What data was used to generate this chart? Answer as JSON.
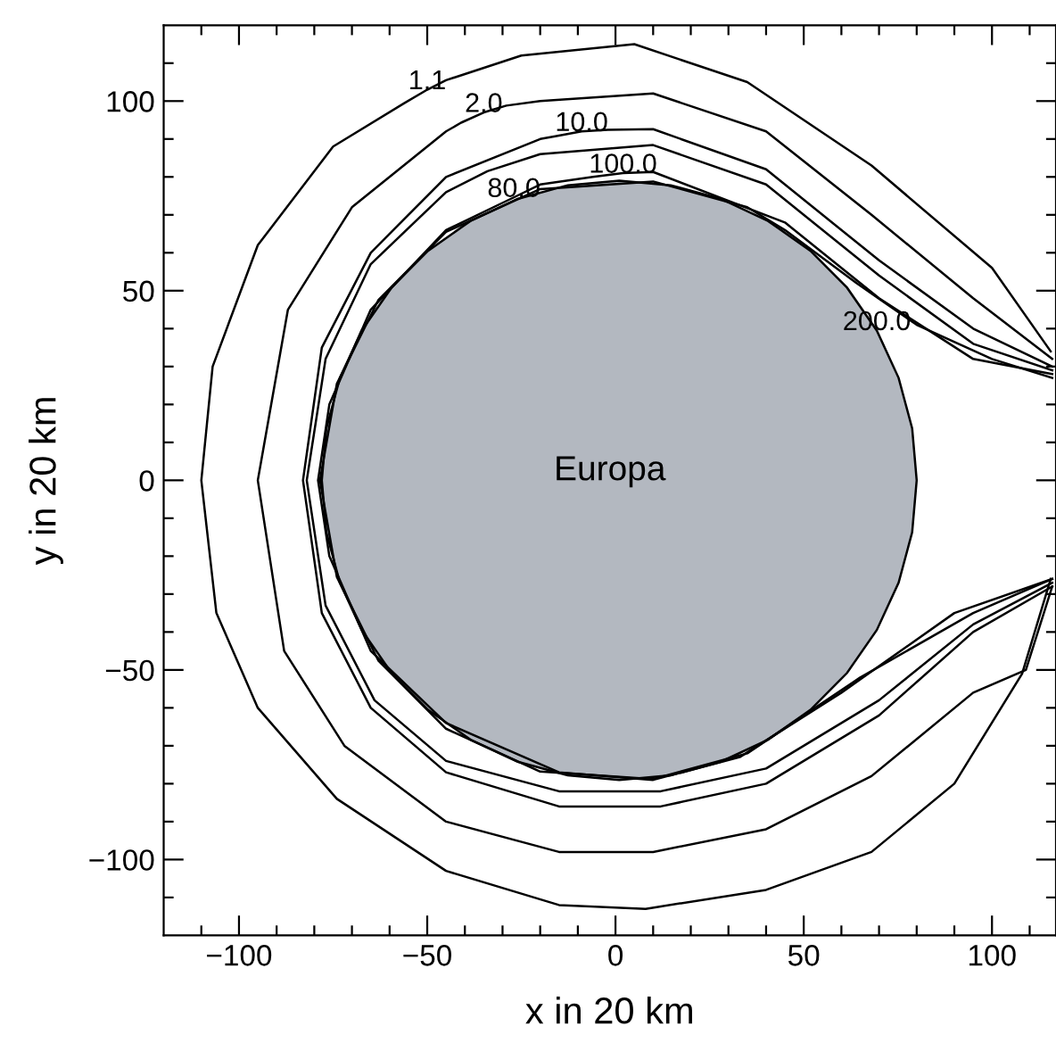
{
  "chart_data": {
    "type": "line",
    "xlabel": "x in 20 km",
    "ylabel": "y in 20 km",
    "xlim": [
      -120,
      117
    ],
    "ylim": [
      -120,
      120
    ],
    "xticks": [
      {
        "value": -110,
        "label": null
      },
      -100,
      {
        "value": -90,
        "label": null
      },
      {
        "value": -80,
        "label": null
      },
      {
        "value": -70,
        "label": null
      },
      {
        "value": -60,
        "label": null
      },
      -50,
      {
        "value": -40,
        "label": null
      },
      {
        "value": -30,
        "label": null
      },
      {
        "value": -20,
        "label": null
      },
      {
        "value": -10,
        "label": null
      },
      0,
      {
        "value": 10,
        "label": null
      },
      {
        "value": 20,
        "label": null
      },
      {
        "value": 30,
        "label": null
      },
      {
        "value": 40,
        "label": null
      },
      50,
      {
        "value": 60,
        "label": null
      },
      {
        "value": 70,
        "label": null
      },
      {
        "value": 80,
        "label": null
      },
      {
        "value": 90,
        "label": null
      },
      100,
      {
        "value": 110,
        "label": null
      }
    ],
    "yticks": [
      {
        "value": -110,
        "label": null
      },
      -100,
      {
        "value": -90,
        "label": null
      },
      {
        "value": -80,
        "label": null
      },
      {
        "value": -70,
        "label": null
      },
      {
        "value": -60,
        "label": null
      },
      -50,
      {
        "value": -40,
        "label": null
      },
      {
        "value": -30,
        "label": null
      },
      {
        "value": -20,
        "label": null
      },
      {
        "value": -10,
        "label": null
      },
      0,
      {
        "value": 10,
        "label": null
      },
      {
        "value": 20,
        "label": null
      },
      {
        "value": 30,
        "label": null
      },
      {
        "value": 40,
        "label": null
      },
      50,
      {
        "value": 60,
        "label": null
      },
      {
        "value": 70,
        "label": null
      },
      {
        "value": 80,
        "label": null
      },
      {
        "value": 90,
        "label": null
      },
      100,
      {
        "value": 110,
        "label": null
      }
    ],
    "grid": false,
    "legend": false,
    "marker": "none",
    "line_style": "solid",
    "series": [
      {
        "type": "area",
        "color": "#b3b8c0",
        "x": [
          80,
          78.8,
          75.2,
          69.4,
          61.5,
          51.8,
          40.5,
          28.0,
          14.7,
          1,
          -12.7,
          -26.0,
          -38.5,
          -49.8,
          -59.5,
          -67.4,
          -73.2,
          -76.8,
          -78,
          -76.8,
          -73.2,
          -67.4,
          -59.5,
          -49.8,
          -38.5,
          -26.0,
          -12.7,
          1,
          14.7,
          28.0,
          40.5,
          51.8,
          61.5,
          69.4,
          75.2,
          78.8
        ],
        "values": [
          0,
          13.7,
          27.0,
          39.5,
          50.8,
          60.5,
          68.4,
          74.2,
          77.8,
          79,
          77.8,
          74.2,
          68.4,
          60.5,
          50.8,
          39.5,
          27.0,
          13.7,
          0,
          -13.7,
          -27.0,
          -39.5,
          -50.8,
          -60.5,
          -68.4,
          -74.2,
          -77.8,
          -79,
          -77.8,
          -74.2,
          -68.4,
          -60.5,
          -50.8,
          -39.5,
          -27.0,
          -13.7
        ]
      },
      {
        "color": "#000000",
        "x": [
          115.6,
          100,
          68,
          35,
          5,
          -25,
          -45,
          -50,
          -56,
          -75,
          -95,
          -107,
          -110,
          -106,
          -95,
          -74,
          -45,
          -15,
          8,
          40,
          68,
          90,
          108,
          115.6
        ],
        "values": [
          34,
          56,
          83,
          105,
          115,
          112,
          105.5,
          103,
          99.5,
          88,
          62,
          30,
          0,
          -35,
          -60,
          -84,
          -103,
          -112,
          -113,
          -108,
          -98,
          -80,
          -51,
          -26
        ]
      },
      {
        "color": "#000000",
        "x": [
          116,
          95,
          68,
          40,
          10,
          -20,
          -29,
          -35,
          -41,
          -45,
          -70,
          -87,
          -95,
          -88,
          -72,
          -45,
          -15,
          10,
          40,
          68,
          95,
          109,
          116
        ],
        "values": [
          32,
          48,
          70,
          92,
          102,
          100,
          98.8,
          97,
          94.3,
          92,
          72,
          45,
          0,
          -45,
          -70,
          -90,
          -98,
          -98,
          -92,
          -78,
          -56,
          -50,
          -28
        ]
      },
      {
        "color": "#000000",
        "x": [
          116,
          95,
          70,
          40,
          10,
          -2,
          -9,
          -16,
          -20,
          -45,
          -65,
          -78,
          -83,
          -78,
          -65,
          -45,
          -15,
          12,
          40,
          70,
          95,
          116
        ],
        "values": [
          30,
          40,
          58,
          82,
          92.6,
          92.4,
          92,
          90.7,
          90,
          80,
          60,
          35,
          0,
          -35,
          -60,
          -77,
          -86,
          -86,
          -80,
          -62,
          -40,
          -28
        ]
      },
      {
        "color": "#000000",
        "x": [
          116,
          95,
          70,
          40,
          10,
          -20,
          -34,
          -45,
          -65,
          -77,
          -82,
          -77,
          -64,
          -45,
          -15,
          12,
          40,
          70,
          95,
          116
        ],
        "values": [
          29,
          36,
          54,
          78,
          88.4,
          86,
          81.5,
          76,
          57,
          32,
          0,
          -33,
          -58,
          -74,
          -82,
          -82,
          -76,
          -58,
          -38,
          -27
        ]
      },
      {
        "color": "#000000",
        "x": [
          116,
          95,
          70,
          45,
          10,
          2,
          -6,
          -20,
          -27,
          -45,
          -65,
          -76,
          -79,
          -76,
          -65,
          -45,
          -15,
          10,
          33,
          60,
          90,
          116
        ],
        "values": [
          28,
          32,
          48,
          68,
          81.3,
          81,
          80,
          78,
          74.6,
          66,
          45,
          20,
          0,
          -20,
          -45,
          -64,
          -77,
          -79,
          -73,
          -56,
          -35,
          -26
        ]
      },
      {
        "color": "#000000",
        "x": [
          116,
          100,
          80,
          72,
          64,
          45,
          35,
          10,
          -20,
          -45,
          -63,
          -74,
          -78.5,
          -74,
          -63,
          -45,
          -20,
          10,
          35,
          65,
          95,
          116
        ],
        "values": [
          27,
          32,
          41,
          46.5,
          52,
          66,
          72,
          78.8,
          76.8,
          65.5,
          47.5,
          25.5,
          0,
          -25.5,
          -47.5,
          -65.5,
          -76.8,
          -78.8,
          -72,
          -52,
          -35,
          -26
        ]
      }
    ],
    "annotations": [
      {
        "text": "1.1",
        "x": -50,
        "y": 103
      },
      {
        "text": "2.0",
        "x": -35,
        "y": 97
      },
      {
        "text": "10.0",
        "x": -9,
        "y": 92
      },
      {
        "text": "80.0",
        "x": -27,
        "y": 74.6
      },
      {
        "text": "100.0",
        "x": 2,
        "y": 81
      },
      {
        "text": "200.0",
        "x": 69.4,
        "y": 39.5
      },
      "Europa"
    ]
  }
}
